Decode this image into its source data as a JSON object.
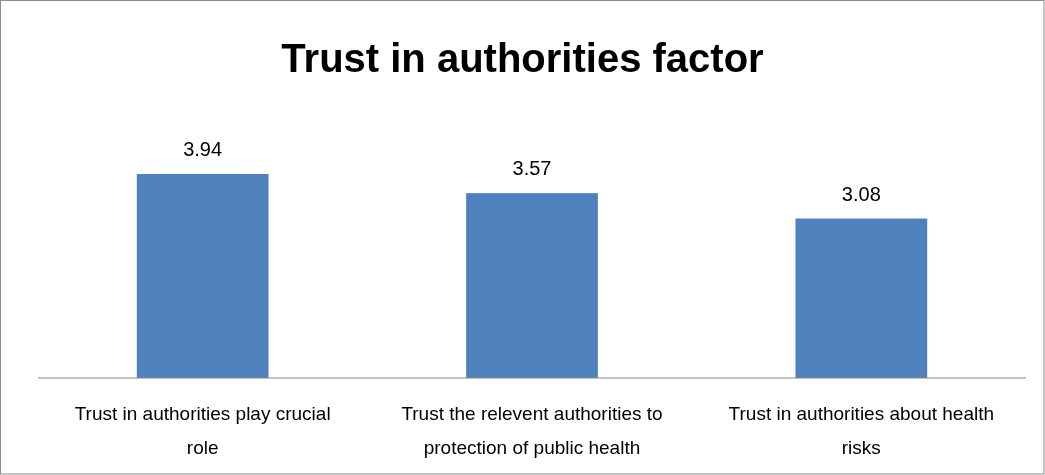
{
  "chart_data": {
    "type": "bar",
    "title": "Trust in authorities factor",
    "categories": [
      "Trust in authorities play crucial role",
      "Trust the relevent authorities to protection of public health",
      "Trust in authorities about health risks"
    ],
    "values": [
      3.94,
      3.57,
      3.08
    ],
    "color": "#4f81bd",
    "tick_labels": "x",
    "data_labels": true
  }
}
